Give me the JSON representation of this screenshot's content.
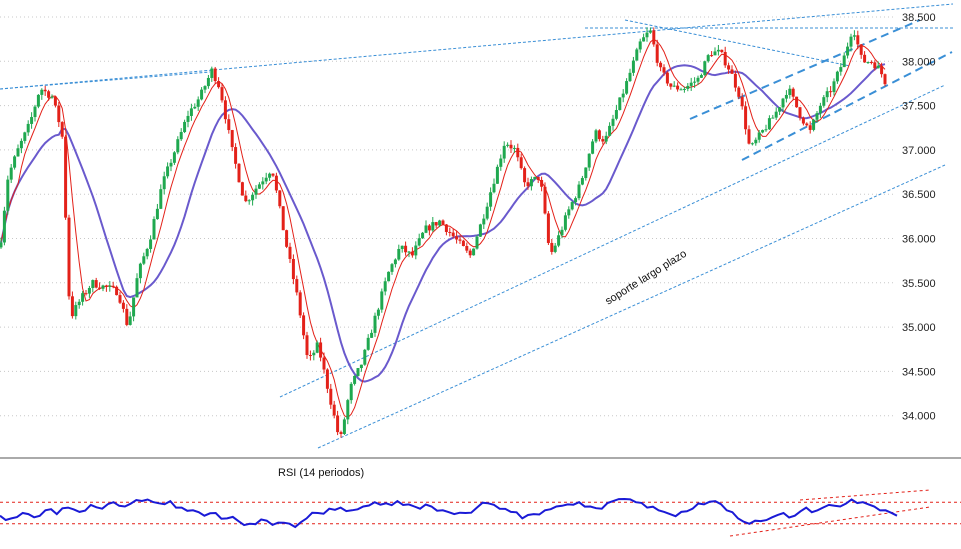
{
  "chart_data": [
    {
      "type": "candlestick",
      "title": "",
      "xlabel": "",
      "ylabel": "",
      "ylim": [
        33700,
        38600
      ],
      "y_ticks": [
        "38.500",
        "38.000",
        "37.500",
        "37.000",
        "36.500",
        "36.000",
        "35.500",
        "35.000",
        "34.500",
        "34.000"
      ],
      "grid": "horizontal dotted",
      "colors": {
        "up": "#1fa84f",
        "down": "#e32119",
        "ma_fast": "#e32119",
        "ma_slow": "#6a5acd",
        "trendline": "#3a8fd6"
      },
      "price_path": [
        [
          0,
          35900
        ],
        [
          8,
          36700
        ],
        [
          18,
          37000
        ],
        [
          30,
          37300
        ],
        [
          40,
          37700
        ],
        [
          52,
          37600
        ],
        [
          62,
          37200
        ],
        [
          70,
          35100
        ],
        [
          80,
          35300
        ],
        [
          92,
          35500
        ],
        [
          105,
          35450
        ],
        [
          118,
          35400
        ],
        [
          128,
          35000
        ],
        [
          138,
          35600
        ],
        [
          150,
          36000
        ],
        [
          162,
          36600
        ],
        [
          175,
          37000
        ],
        [
          188,
          37400
        ],
        [
          200,
          37600
        ],
        [
          212,
          37900
        ],
        [
          220,
          37700
        ],
        [
          232,
          37000
        ],
        [
          245,
          36400
        ],
        [
          258,
          36600
        ],
        [
          272,
          36800
        ],
        [
          285,
          36000
        ],
        [
          298,
          35300
        ],
        [
          308,
          34600
        ],
        [
          318,
          34800
        ],
        [
          330,
          34200
        ],
        [
          340,
          33700
        ],
        [
          350,
          34300
        ],
        [
          362,
          34600
        ],
        [
          375,
          35100
        ],
        [
          388,
          35600
        ],
        [
          400,
          35900
        ],
        [
          412,
          35800
        ],
        [
          425,
          36100
        ],
        [
          440,
          36200
        ],
        [
          455,
          36000
        ],
        [
          470,
          35800
        ],
        [
          482,
          36200
        ],
        [
          495,
          36700
        ],
        [
          505,
          37100
        ],
        [
          515,
          37000
        ],
        [
          525,
          36600
        ],
        [
          540,
          36700
        ],
        [
          550,
          35800
        ],
        [
          558,
          36000
        ],
        [
          568,
          36300
        ],
        [
          580,
          36600
        ],
        [
          595,
          37200
        ],
        [
          605,
          37100
        ],
        [
          615,
          37400
        ],
        [
          628,
          37800
        ],
        [
          640,
          38200
        ],
        [
          650,
          38350
        ],
        [
          660,
          37900
        ],
        [
          672,
          37700
        ],
        [
          685,
          37700
        ],
        [
          698,
          37800
        ],
        [
          710,
          38100
        ],
        [
          720,
          38100
        ],
        [
          730,
          37900
        ],
        [
          740,
          37600
        ],
        [
          750,
          37000
        ],
        [
          762,
          37200
        ],
        [
          775,
          37400
        ],
        [
          788,
          37700
        ],
        [
          800,
          37400
        ],
        [
          810,
          37200
        ],
        [
          820,
          37500
        ],
        [
          832,
          37700
        ],
        [
          843,
          38000
        ],
        [
          853,
          38400
        ],
        [
          862,
          38000
        ],
        [
          872,
          38000
        ],
        [
          880,
          37900
        ],
        [
          888,
          37700
        ]
      ],
      "annotations": [
        {
          "text": "soporte largo plazo"
        }
      ]
    },
    {
      "type": "line",
      "title": "RSI (14 periodos)",
      "series": [
        {
          "values": [
            45,
            40,
            50,
            42,
            55,
            48,
            60,
            52,
            65,
            58,
            70,
            62,
            74,
            75,
            68,
            72,
            60,
            55,
            45,
            50,
            40,
            35,
            30,
            38,
            28,
            32,
            24,
            40,
            50,
            58,
            60,
            55,
            62,
            70,
            68,
            72,
            66,
            58,
            62,
            55,
            48,
            50,
            60,
            68,
            58,
            52,
            40,
            48,
            55,
            62,
            66,
            70,
            62,
            58,
            72,
            76,
            70,
            60,
            55,
            48,
            52,
            58,
            66,
            72,
            55,
            40,
            30,
            35,
            42,
            50,
            45,
            60,
            55,
            65,
            62,
            75,
            70,
            62,
            55,
            45
          ]
        }
      ],
      "ylim": [
        0,
        100
      ]
    }
  ]
}
